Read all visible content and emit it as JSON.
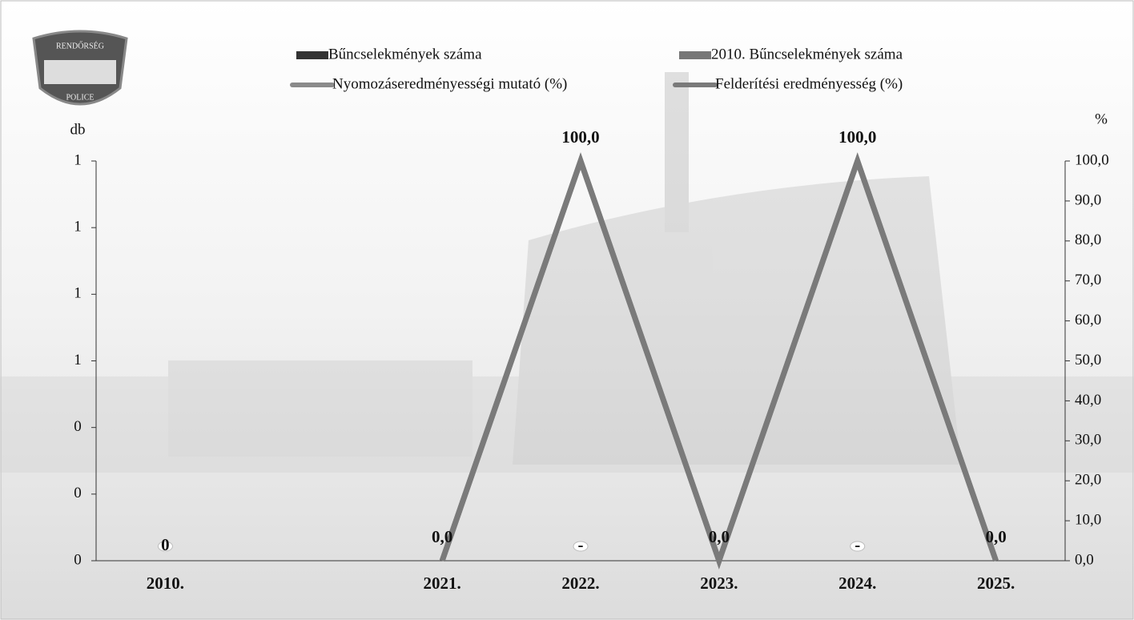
{
  "logo": {
    "top": "RENDŐRSÉG",
    "bottom": "POLICE"
  },
  "chart_data": {
    "type": "combo",
    "y_label": "db",
    "y2_label": "%",
    "categories": [
      "2010.",
      null,
      "2021.",
      "2022.",
      "2023.",
      "2024.",
      "2025."
    ],
    "ylim": [
      0,
      1.2
    ],
    "yticks": [
      0,
      {
        "value": 0.2,
        "label": "0"
      },
      {
        "value": 0.4,
        "label": "0"
      },
      {
        "value": 0.6,
        "label": "1"
      },
      {
        "value": 0.8,
        "label": "1"
      },
      {
        "value": 1.0,
        "label": "1"
      },
      {
        "value": 1.2,
        "label": "1"
      }
    ],
    "y2lim": [
      0,
      100
    ],
    "y2ticks": [
      {
        "value": 0,
        "label": "0,0"
      },
      {
        "value": 10,
        "label": "10,0"
      },
      {
        "value": 20,
        "label": "20,0"
      },
      {
        "value": 30,
        "label": "30,0"
      },
      {
        "value": 40,
        "label": "40,0"
      },
      {
        "value": 50,
        "label": "50,0"
      },
      {
        "value": 60,
        "label": "60,0"
      },
      {
        "value": 70,
        "label": "70,0"
      },
      {
        "value": 80,
        "label": "80,0"
      },
      {
        "value": 90,
        "label": "90,0"
      },
      {
        "value": 100,
        "label": "100,0"
      }
    ],
    "series": [
      {
        "name": "Bűncselekmények száma",
        "type": "bar",
        "color": "#333333",
        "values": [
          null,
          null,
          null,
          0,
          null,
          0,
          null
        ],
        "value_labels": [
          null,
          null,
          null,
          "-",
          null,
          "-",
          null
        ]
      },
      {
        "name": "2010. Bűncselekmények száma",
        "type": "bar",
        "color": "#777777",
        "values": [
          0,
          null,
          null,
          null,
          null,
          null,
          null
        ],
        "value_labels": [
          "0",
          null,
          null,
          null,
          null,
          null,
          null
        ]
      },
      {
        "name": "Nyomozáseredményességi mutató (%)",
        "type": "line",
        "axis": "y2",
        "color": "#8a8a8a",
        "values": [
          null,
          null,
          0,
          100,
          0,
          100,
          0
        ]
      },
      {
        "name": "Felderítési eredményesség (%)",
        "type": "line",
        "axis": "y2",
        "color": "#7a7a7a",
        "values": [
          null,
          null,
          0,
          100,
          0,
          100,
          0
        ],
        "value_labels": [
          null,
          null,
          "0,0",
          "100,0",
          "0,0",
          "100,0",
          "0,0"
        ]
      }
    ]
  }
}
